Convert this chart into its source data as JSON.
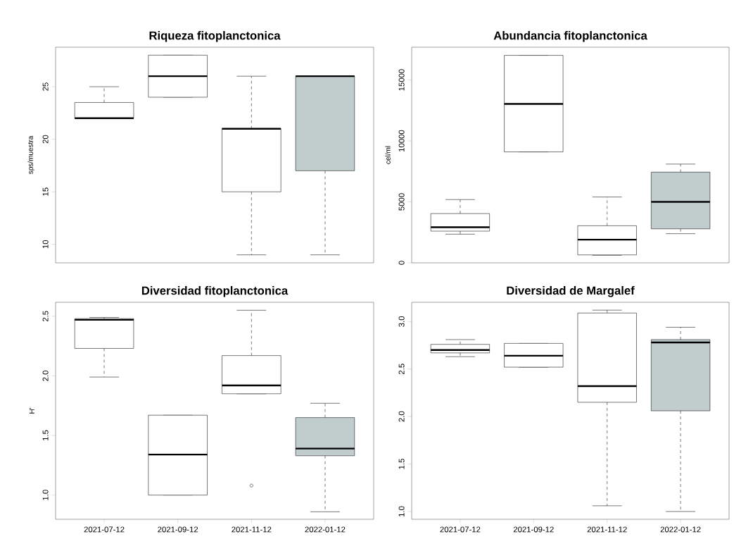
{
  "chart_data": [
    {
      "type": "box",
      "title": "Riqueza fitoplanctonica",
      "ylabel": "sps/muestra",
      "categories": [
        "2021-07-12",
        "2021-09-12",
        "2021-11-12",
        "2022-01-12"
      ],
      "tick_labels": "y",
      "ylim": [
        8.24,
        28.76
      ],
      "yticks": [
        10,
        15,
        20,
        25
      ],
      "colors": [
        "#ffffff",
        "#ffffff",
        "#ffffff",
        "#c1cdcd"
      ],
      "boxes": [
        {
          "low": 22,
          "q1": 22,
          "median": 22,
          "q3": 23.5,
          "high": 25
        },
        {
          "low": 24,
          "q1": 24,
          "median": 26,
          "q3": 28,
          "high": 28
        },
        {
          "low": 9,
          "q1": 15,
          "median": 21,
          "q3": 21,
          "high": 26
        },
        {
          "low": 9,
          "q1": 17,
          "median": 26,
          "q3": 26,
          "high": 26
        }
      ]
    },
    {
      "type": "box",
      "title": "Abundancia fitoplanctonica",
      "ylabel": "cel/ml",
      "categories": [
        "2021-07-12",
        "2021-09-12",
        "2021-11-12",
        "2022-01-12"
      ],
      "tick_labels": "y",
      "ylim": [
        0,
        17690
      ],
      "yticks": [
        0,
        5000,
        10000,
        15000
      ],
      "colors": [
        "#ffffff",
        "#ffffff",
        "#ffffff",
        "#c1cdcd"
      ],
      "boxes": [
        {
          "low": 2350,
          "q1": 2600,
          "median": 2920,
          "q3": 4040,
          "high": 5190
        },
        {
          "low": 9100,
          "q1": 9100,
          "median": 13040,
          "q3": 17020,
          "high": 17020
        },
        {
          "low": 620,
          "q1": 650,
          "median": 1900,
          "q3": 3040,
          "high": 5400
        },
        {
          "low": 2390,
          "q1": 2790,
          "median": 5000,
          "q3": 7440,
          "high": 8100
        }
      ]
    },
    {
      "type": "box",
      "title": "Diversidad fitoplanctonica",
      "ylabel": "H'",
      "categories": [
        "2021-07-12",
        "2021-09-12",
        "2021-11-12",
        "2022-01-12"
      ],
      "ylim": [
        0.797,
        2.617
      ],
      "yticks": [
        {
          "value": 1,
          "label": "1.0"
        },
        1.5,
        {
          "value": 2,
          "label": "2.0"
        },
        2.5
      ],
      "colors": [
        "#ffffff",
        "#ffffff",
        "#ffffff",
        "#c1cdcd"
      ],
      "boxes": [
        {
          "low": 1.99,
          "q1": 2.23,
          "median": 2.47,
          "q3": 2.48,
          "high": 2.49
        },
        {
          "low": 1.0,
          "q1": 1.0,
          "median": 1.34,
          "q3": 1.67,
          "high": 1.67
        },
        {
          "low": 1.85,
          "q1": 1.85,
          "median": 1.92,
          "q3": 2.17,
          "high": 2.55,
          "outliers": [
            1.08
          ]
        },
        {
          "low": 0.86,
          "q1": 1.33,
          "median": 1.39,
          "q3": 1.65,
          "high": 1.77
        }
      ]
    },
    {
      "type": "box",
      "title": "Diversidad de Margalef",
      "categories": [
        "2021-07-12",
        "2021-09-12",
        "2021-11-12",
        "2022-01-12"
      ],
      "ylim": [
        0.918,
        3.203
      ],
      "yticks": [
        {
          "value": 1,
          "label": "1.0"
        },
        1.5,
        {
          "value": 2,
          "label": "2.0"
        },
        2.5,
        {
          "value": 3,
          "label": "3.0"
        }
      ],
      "colors": [
        "#ffffff",
        "#ffffff",
        "#ffffff",
        "#c1cdcd"
      ],
      "boxes": [
        {
          "low": 2.63,
          "q1": 2.67,
          "median": 2.7,
          "q3": 2.76,
          "high": 2.81
        },
        {
          "low": 2.52,
          "q1": 2.52,
          "median": 2.64,
          "q3": 2.77,
          "high": 2.77
        },
        {
          "low": 1.06,
          "q1": 2.15,
          "median": 2.32,
          "q3": 3.09,
          "high": 3.12
        },
        {
          "low": 1.0,
          "q1": 2.06,
          "median": 2.78,
          "q3": 2.81,
          "high": 2.94
        }
      ]
    }
  ]
}
